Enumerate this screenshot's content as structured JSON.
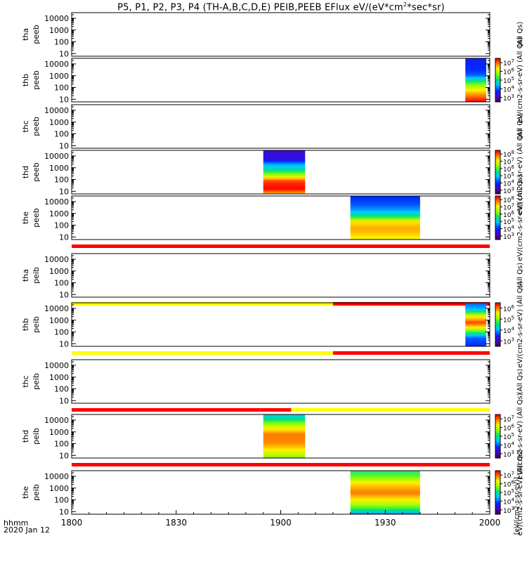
{
  "chart_data": {
    "type": "heatmap",
    "title": "P5, P1, P2, P3, P4 (TH-A,B,C,D,E) PEIB,PEEB EFlux eV/(eV*cm²*sec*sr)",
    "title_main": "P5, P1, P2, P3, P4 (TH-A,B,C,D,E) PEIB,PEEB EFlux eV/(eV*cm",
    "title_sup": "2",
    "title_tail": "*sec*sr)",
    "x_axis": {
      "label_line1": "hhmm",
      "label_line2": "2020 Jan 12",
      "range_minutes": [
        0,
        120
      ],
      "ticks": [
        {
          "minute": 0,
          "label": "1800"
        },
        {
          "minute": 30,
          "label": "1830"
        },
        {
          "minute": 60,
          "label": "1900"
        },
        {
          "minute": 90,
          "label": "1930"
        },
        {
          "minute": 120,
          "label": "2000"
        }
      ]
    },
    "y_axis": {
      "scale": "log",
      "range": [
        6,
        30000
      ],
      "ticks": [
        {
          "value": 10,
          "label": "10"
        },
        {
          "value": 100,
          "label": "100"
        },
        {
          "value": 1000,
          "label": "1000"
        },
        {
          "value": 10000,
          "label": "10000"
        }
      ]
    },
    "colorbar_label": "eV/(cm2-s-sr-eV)",
    "colorbar_suffix": "(All Qs)",
    "colorbar_axis_label": "[eV/(cm2-s-sr-eV)]",
    "panels": [
      {
        "probe": "tha",
        "product": "peeb",
        "colorbar": null,
        "data_blocks": []
      },
      {
        "probe": "thb",
        "product": "peeb",
        "colorbar": {
          "exp_labels": [
            "3",
            "4",
            "5",
            "6",
            "7"
          ]
        },
        "data_blocks": [
          {
            "start_min": 113,
            "end_min": 119,
            "profile": "electron_b"
          }
        ]
      },
      {
        "probe": "thc",
        "product": "peeb",
        "colorbar": null,
        "data_blocks": []
      },
      {
        "probe": "thd",
        "product": "peeb",
        "colorbar": {
          "exp_labels": [
            "3",
            "4",
            "5",
            "6",
            "7",
            "8"
          ]
        },
        "data_blocks": [
          {
            "start_min": 55,
            "end_min": 67,
            "profile": "electron_d"
          }
        ]
      },
      {
        "probe": "the",
        "product": "peeb",
        "colorbar": {
          "exp_labels": [
            "3",
            "4",
            "5",
            "6",
            "7",
            "8"
          ]
        },
        "data_blocks": [
          {
            "start_min": 80,
            "end_min": 100,
            "profile": "electron_e"
          }
        ],
        "bar_below": [
          {
            "start_min": 0,
            "end_min": 120,
            "color": "#ff0000"
          }
        ]
      },
      {
        "probe": "tha",
        "product": "peib",
        "colorbar": null,
        "data_blocks": [],
        "bar_below": [
          {
            "start_min": 0,
            "end_min": 75,
            "color": "#ffff00"
          },
          {
            "start_min": 75,
            "end_min": 120,
            "color": "#ff0000"
          }
        ]
      },
      {
        "probe": "thb",
        "product": "peib",
        "colorbar": {
          "exp_labels": [
            "3",
            "4",
            "5",
            "6"
          ]
        },
        "data_blocks": [
          {
            "start_min": 113,
            "end_min": 119,
            "profile": "ion_b"
          }
        ],
        "bar_below": [
          {
            "start_min": 0,
            "end_min": 75,
            "color": "#ffff00"
          },
          {
            "start_min": 75,
            "end_min": 120,
            "color": "#ff0000"
          }
        ]
      },
      {
        "probe": "thc",
        "product": "peib",
        "colorbar": null,
        "data_blocks": [],
        "bar_below": [
          {
            "start_min": 0,
            "end_min": 63,
            "color": "#ff0000"
          },
          {
            "start_min": 63,
            "end_min": 120,
            "color": "#ffff00"
          }
        ]
      },
      {
        "probe": "thd",
        "product": "peib",
        "colorbar": {
          "exp_labels": [
            "3",
            "4",
            "5",
            "6",
            "7"
          ]
        },
        "data_blocks": [
          {
            "start_min": 55,
            "end_min": 67,
            "profile": "ion_d"
          }
        ],
        "bar_below": [
          {
            "start_min": 0,
            "end_min": 120,
            "color": "#ff0000"
          }
        ]
      },
      {
        "probe": "the",
        "product": "peib",
        "colorbar": {
          "exp_labels": [
            "3",
            "4",
            "5",
            "6",
            "7"
          ]
        },
        "data_blocks": [
          {
            "start_min": 80,
            "end_min": 100,
            "profile": "ion_e"
          }
        ]
      }
    ]
  }
}
